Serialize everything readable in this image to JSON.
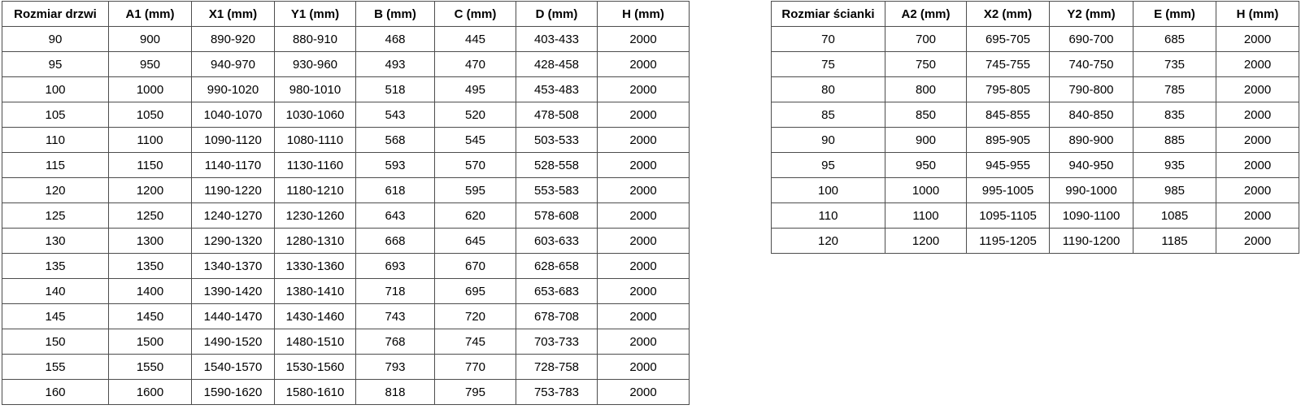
{
  "colors": {
    "background": "#ffffff",
    "border": "#4d4d4d",
    "text": "#000000"
  },
  "tables": [
    {
      "name": "door-sizes",
      "headers": [
        "Rozmiar drzwi",
        "A1 (mm)",
        "X1 (mm)",
        "Y1 (mm)",
        "B (mm)",
        "C (mm)",
        "D (mm)",
        "H (mm)"
      ],
      "rows": [
        [
          "90",
          "900",
          "890-920",
          "880-910",
          "468",
          "445",
          "403-433",
          "2000"
        ],
        [
          "95",
          "950",
          "940-970",
          "930-960",
          "493",
          "470",
          "428-458",
          "2000"
        ],
        [
          "100",
          "1000",
          "990-1020",
          "980-1010",
          "518",
          "495",
          "453-483",
          "2000"
        ],
        [
          "105",
          "1050",
          "1040-1070",
          "1030-1060",
          "543",
          "520",
          "478-508",
          "2000"
        ],
        [
          "110",
          "1100",
          "1090-1120",
          "1080-1110",
          "568",
          "545",
          "503-533",
          "2000"
        ],
        [
          "115",
          "1150",
          "1140-1170",
          "1130-1160",
          "593",
          "570",
          "528-558",
          "2000"
        ],
        [
          "120",
          "1200",
          "1190-1220",
          "1180-1210",
          "618",
          "595",
          "553-583",
          "2000"
        ],
        [
          "125",
          "1250",
          "1240-1270",
          "1230-1260",
          "643",
          "620",
          "578-608",
          "2000"
        ],
        [
          "130",
          "1300",
          "1290-1320",
          "1280-1310",
          "668",
          "645",
          "603-633",
          "2000"
        ],
        [
          "135",
          "1350",
          "1340-1370",
          "1330-1360",
          "693",
          "670",
          "628-658",
          "2000"
        ],
        [
          "140",
          "1400",
          "1390-1420",
          "1380-1410",
          "718",
          "695",
          "653-683",
          "2000"
        ],
        [
          "145",
          "1450",
          "1440-1470",
          "1430-1460",
          "743",
          "720",
          "678-708",
          "2000"
        ],
        [
          "150",
          "1500",
          "1490-1520",
          "1480-1510",
          "768",
          "745",
          "703-733",
          "2000"
        ],
        [
          "155",
          "1550",
          "1540-1570",
          "1530-1560",
          "793",
          "770",
          "728-758",
          "2000"
        ],
        [
          "160",
          "1600",
          "1590-1620",
          "1580-1610",
          "818",
          "795",
          "753-783",
          "2000"
        ]
      ]
    },
    {
      "name": "wall-sizes",
      "headers": [
        "Rozmiar ścianki",
        "A2 (mm)",
        "X2 (mm)",
        "Y2 (mm)",
        "E (mm)",
        "H (mm)"
      ],
      "rows": [
        [
          "70",
          "700",
          "695-705",
          "690-700",
          "685",
          "2000"
        ],
        [
          "75",
          "750",
          "745-755",
          "740-750",
          "735",
          "2000"
        ],
        [
          "80",
          "800",
          "795-805",
          "790-800",
          "785",
          "2000"
        ],
        [
          "85",
          "850",
          "845-855",
          "840-850",
          "835",
          "2000"
        ],
        [
          "90",
          "900",
          "895-905",
          "890-900",
          "885",
          "2000"
        ],
        [
          "95",
          "950",
          "945-955",
          "940-950",
          "935",
          "2000"
        ],
        [
          "100",
          "1000",
          "995-1005",
          "990-1000",
          "985",
          "2000"
        ],
        [
          "110",
          "1100",
          "1095-1105",
          "1090-1100",
          "1085",
          "2000"
        ],
        [
          "120",
          "1200",
          "1195-1205",
          "1190-1200",
          "1185",
          "2000"
        ]
      ]
    }
  ]
}
